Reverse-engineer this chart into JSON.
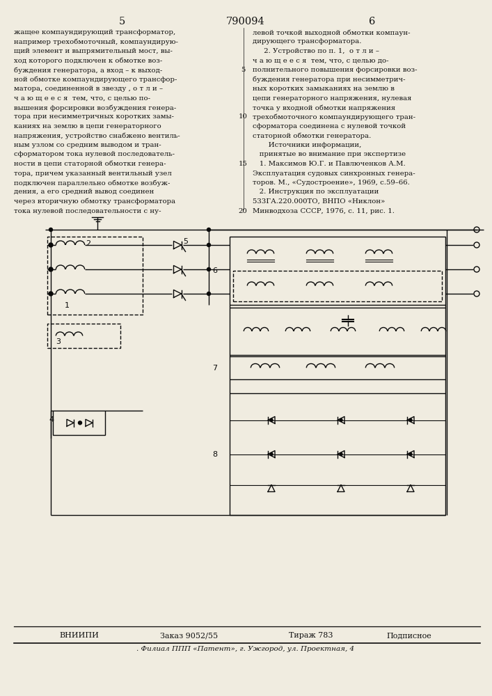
{
  "page_number_left": "5",
  "patent_number": "790094",
  "page_number_right": "6",
  "bg_color": "#f0ece0",
  "text_color": "#111111",
  "left_col_lines": [
    "жащее компаундирующий трансформатор,",
    "например трехобмоточный, компаундирую-",
    "щий элемент и выпрямительный мост, вы-",
    "ход которого подключен к обмотке воз-",
    "буждения генератора, а вход – к выход-",
    "ной обмотке компаундирующего трансфор-",
    "матора, соединенной в звезду , о т л и –",
    "ч а ю щ е е с я  тем, что, с целью по-",
    "вышения форсировки возбуждения генера-",
    "тора при несимметричных коротких замы-",
    "каниях на землю в цепи генераторного",
    "напряжения, устройство снабжено вентиль-",
    "ным узлом со средним выводом и тран-",
    "сформатором тока нулевой последователь-",
    "ности в цепи статорной обмотки генера-",
    "тора, причем указанный вентильный узел",
    "подключен параллельно обмотке возбуж-",
    "дения, а его средний вывод соединен",
    "через вторичную обмотку трансформатора",
    "тока нулевой последовательности с ну-"
  ],
  "right_col_lines": [
    "левой точкой выходной обмотки компаун-",
    "дирующего трансформатора.",
    "     2. Устройство по п. 1,  о т л и –",
    "ч а ю щ е е с я  тем, что, с целью до-",
    "полнительного повышения форсировки воз-",
    "буждения генератора при несимметрич-",
    "ных коротких замыканиях на землю в",
    "цепи генераторного напряжения, нулевая",
    "точка у входной обмотки напряжения",
    "трехобмоточного компаундирующего тран-",
    "сформатора соединена с нулевой точкой",
    "статорной обмотки генератора.",
    "       Источники информации,",
    "   принятые во внимание при экспертизе",
    "   1. Максимов Ю.Г. и Павлюченков А.М.",
    "Эксплуатация судовых синхронных генера-",
    "торов. М., «Судостроение», 1969, с.59–66.",
    "   2. Инструкция по эксплуатации",
    "533ГА.220.000ТО, ВНПО «Никлон»",
    "Минводхоза СССР, 1976, с. 11, рис. 1."
  ],
  "line_numbers": [
    "5",
    "10",
    "15",
    "20"
  ],
  "footer_org": "ВНИИПИ",
  "footer_order": "Заказ 9052/55",
  "footer_print": "Тираж 783",
  "footer_type": "Подписное",
  "footer_addr": "Филиал ППП «Патент», г. Ужгород, ул. Проектная, 4"
}
